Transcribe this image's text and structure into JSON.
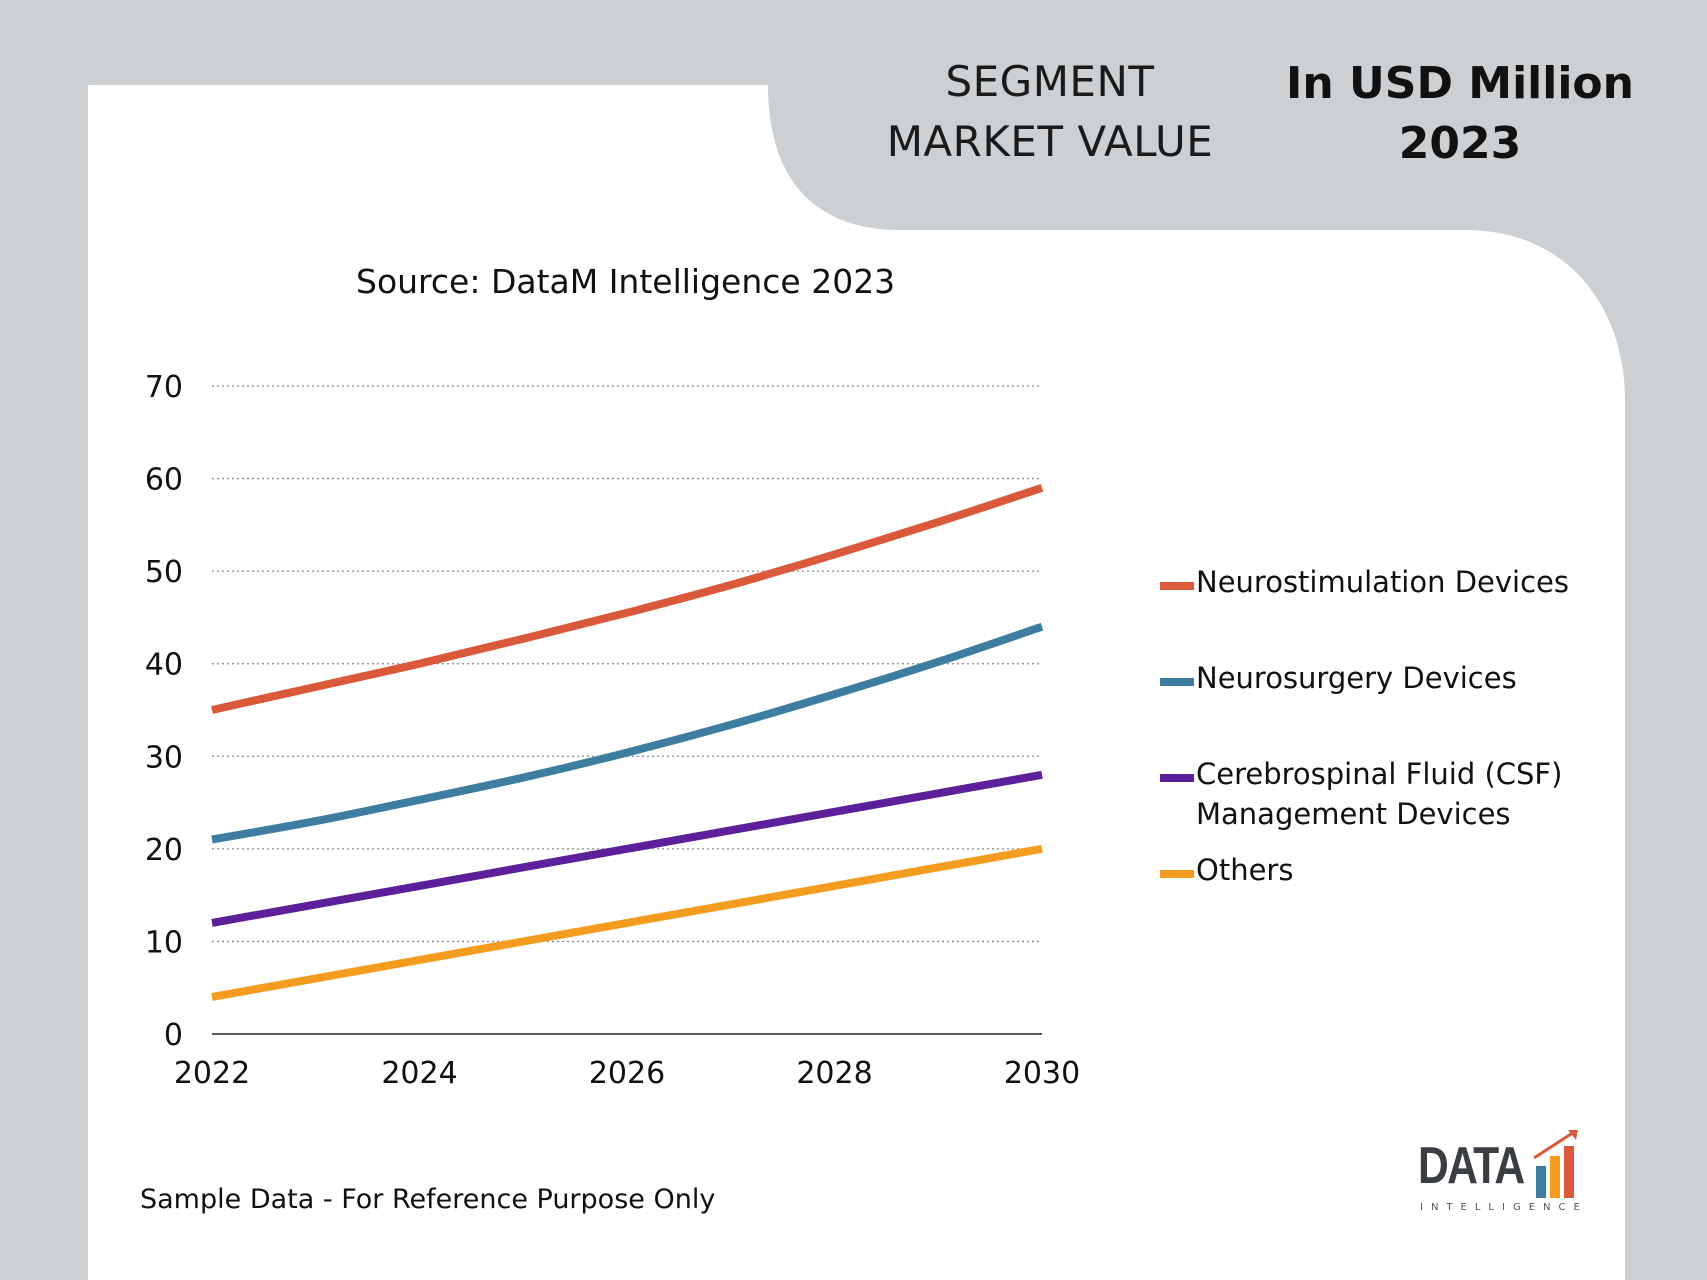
{
  "header": {
    "segment_line1": "SEGMENT",
    "segment_line2": "MARKET VALUE",
    "unit_line1": "In USD Million",
    "unit_line2": "2023"
  },
  "source": "Source: DataM Intelligence 2023",
  "footnote": "Sample Data - For Reference Purpose Only",
  "logo": {
    "word": "DATA",
    "sub": "INTELLIGENCE"
  },
  "colors": {
    "background": "#cdd0d3",
    "card": "#ffffff"
  },
  "chart_data": {
    "type": "line",
    "title": "",
    "xlabel": "",
    "ylabel": "",
    "x": [
      2022,
      2023,
      2024,
      2025,
      2026,
      2027,
      2028,
      2029,
      2030
    ],
    "xticks": [
      "2022",
      "2024",
      "2026",
      "2028",
      "2030"
    ],
    "yticks": [
      "0",
      "10",
      "20",
      "30",
      "40",
      "50",
      "60",
      "70"
    ],
    "xlim": [
      2022,
      2030
    ],
    "ylim": [
      0,
      70
    ],
    "grid": "horizontal dotted",
    "legend_position": "right",
    "series": [
      {
        "name": "Neurostimulation Devices",
        "color": "#d9593a",
        "values": [
          35,
          37.5,
          40,
          42.7,
          45.5,
          48.5,
          51.8,
          55.3,
          59
        ]
      },
      {
        "name": "Neurosurgery Devices",
        "color": "#3d7ea0",
        "values": [
          21,
          23,
          25.3,
          27.7,
          30.4,
          33.4,
          36.7,
          40.2,
          44
        ]
      },
      {
        "name": "Cerebrospinal Fluid (CSF) Management Devices",
        "color": "#5b209a",
        "values": [
          12,
          14,
          16,
          18,
          20,
          22,
          24,
          26,
          28
        ]
      },
      {
        "name": "Others",
        "color": "#f39c1f",
        "values": [
          4,
          6,
          8,
          10,
          12,
          14,
          16,
          18,
          20
        ]
      }
    ]
  }
}
